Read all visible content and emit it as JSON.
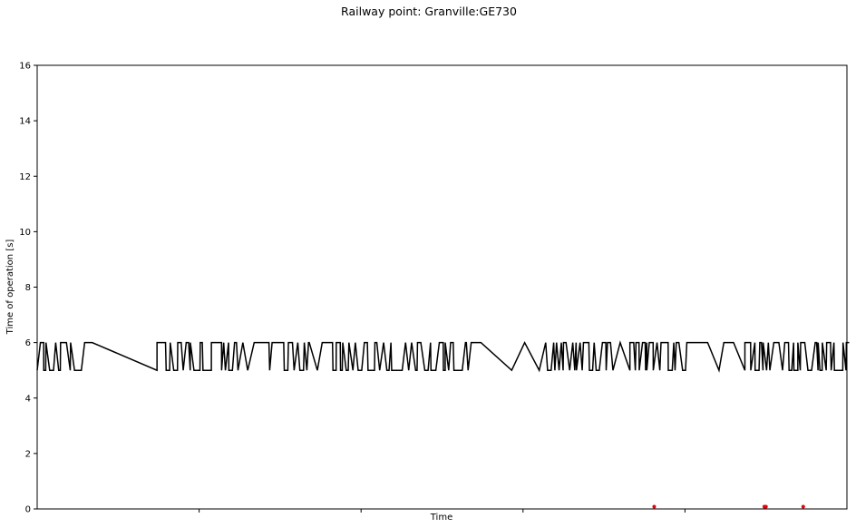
{
  "chart_data": {
    "type": "line",
    "title": "Railway point: Granville:GE730",
    "xlabel": "Time",
    "ylabel": "Time of operation [s]",
    "xlim": [
      0,
      500
    ],
    "ylim": [
      0,
      16
    ],
    "yticks": [
      0,
      2,
      4,
      6,
      8,
      10,
      12,
      14,
      16
    ],
    "xticks": [
      100,
      200,
      300,
      400
    ],
    "xtick_labels": [
      "",
      "",
      "",
      ""
    ],
    "grid": false,
    "legend": "none",
    "series_line": {
      "color": "#000000",
      "segments": [
        {
          "from": 2,
          "to": 32,
          "low": 5,
          "high": 6,
          "n": 14,
          "seed": 11
        },
        {
          "from": 74,
          "to": 124,
          "low": 5,
          "high": 6,
          "n": 26,
          "seed": 23
        },
        {
          "from": 134,
          "to": 168,
          "low": 5,
          "high": 6,
          "n": 16,
          "seed": 37
        },
        {
          "from": 180,
          "to": 265,
          "low": 5,
          "high": 6,
          "n": 40,
          "seed": 41
        },
        {
          "from": 314,
          "to": 354,
          "low": 5,
          "high": 6,
          "n": 22,
          "seed": 53
        },
        {
          "from": 366,
          "to": 403,
          "low": 5,
          "high": 6,
          "n": 18,
          "seed": 67
        },
        {
          "from": 437,
          "to": 500,
          "low": 5,
          "high": 6,
          "n": 30,
          "seed": 79
        }
      ],
      "points": [
        [
          0,
          5
        ],
        [
          2,
          6
        ],
        [
          32,
          6
        ],
        [
          34,
          6
        ],
        [
          74,
          5
        ],
        [
          124,
          5
        ],
        [
          127,
          6
        ],
        [
          130,
          5
        ],
        [
          134,
          6
        ],
        [
          168,
          6
        ],
        [
          173,
          5
        ],
        [
          176,
          6
        ],
        [
          180,
          6
        ],
        [
          265,
          6
        ],
        [
          268,
          6
        ],
        [
          274,
          6
        ],
        [
          293,
          5
        ],
        [
          301,
          6
        ],
        [
          310,
          5
        ],
        [
          314,
          6
        ],
        [
          354,
          6
        ],
        [
          360,
          6
        ],
        [
          366,
          5
        ],
        [
          403,
          6
        ],
        [
          408,
          6
        ],
        [
          414,
          6
        ],
        [
          421,
          5
        ],
        [
          424,
          6
        ],
        [
          430,
          6
        ],
        [
          437,
          5
        ]
      ]
    },
    "series_markers": {
      "color": "#e8000b",
      "points": [
        [
          381,
          0.08
        ],
        [
          449,
          0.08
        ],
        [
          450,
          0.08
        ],
        [
          473,
          0.08
        ]
      ]
    }
  }
}
